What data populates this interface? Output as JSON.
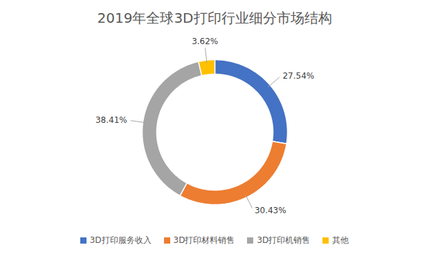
{
  "chart_data": {
    "type": "pie",
    "title": "2019年全球3D打印行业细分市场结构",
    "categories": [
      "3D打印服务收入",
      "3D打印材料销售",
      "3D打印机销售",
      "其他"
    ],
    "values": [
      27.54,
      30.43,
      38.41,
      3.62
    ],
    "value_labels": [
      "27.54%",
      "30.43%",
      "38.41%",
      "3.62%"
    ],
    "colors": [
      "#4472c4",
      "#ed7d31",
      "#a5a5a5",
      "#ffc000"
    ],
    "data_labels": true,
    "legend": "bottom"
  }
}
